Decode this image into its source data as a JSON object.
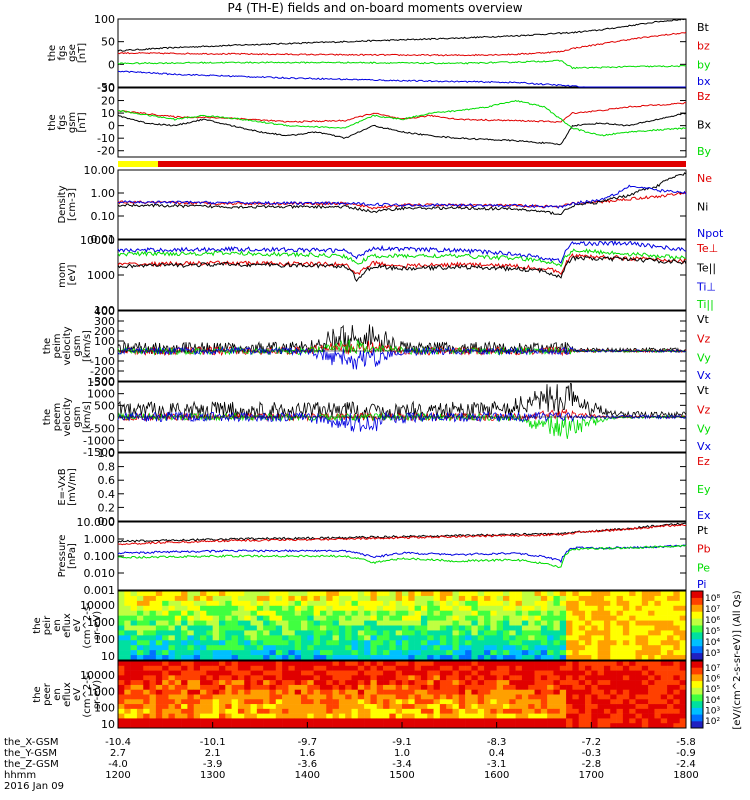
{
  "title": "P4 (TH-E) fields and on-board moments overview",
  "colors": {
    "black": "#000000",
    "red": "#e00000",
    "green": "#00dd00",
    "blue": "#0000e0",
    "yellow": "#ffff00"
  },
  "chart_data": [
    {
      "type": "line",
      "ylabel": [
        "the",
        "fgs",
        "gse",
        "[nT]"
      ],
      "ylim": [
        -50,
        100
      ],
      "yticks": [
        100,
        50,
        0,
        -50
      ],
      "legend": [
        {
          "name": "Bt",
          "color": "black"
        },
        {
          "name": "bz",
          "color": "red"
        },
        {
          "name": "by",
          "color": "green"
        },
        {
          "name": "bx",
          "color": "blue"
        }
      ],
      "series": [
        {
          "name": "Bt",
          "color": "black",
          "x": [
            0,
            10,
            20,
            30,
            40,
            50,
            60,
            70,
            80,
            85,
            90,
            95,
            100
          ],
          "y": [
            30,
            37,
            42,
            46,
            50,
            54,
            58,
            63,
            70,
            76,
            85,
            94,
            100
          ]
        },
        {
          "name": "bz",
          "color": "red",
          "x": [
            0,
            20,
            40,
            60,
            70,
            78,
            80,
            85,
            90,
            95,
            100
          ],
          "y": [
            25,
            23,
            21,
            20,
            22,
            28,
            35,
            45,
            55,
            63,
            70
          ]
        },
        {
          "name": "by",
          "color": "green",
          "x": [
            0,
            20,
            40,
            60,
            70,
            78,
            80,
            85,
            90,
            100
          ],
          "y": [
            2,
            4,
            4,
            2,
            5,
            8,
            -8,
            -7,
            -5,
            -4
          ]
        },
        {
          "name": "bx",
          "color": "blue",
          "x": [
            0,
            10,
            20,
            30,
            40,
            50,
            60,
            70,
            80,
            90,
            100
          ],
          "y": [
            -15,
            -22,
            -26,
            -30,
            -33,
            -36,
            -38,
            -40,
            -48,
            -60,
            -75
          ]
        }
      ]
    },
    {
      "type": "line",
      "ylabel": [
        "the",
        "fgs",
        "gsm",
        "[nT]"
      ],
      "ylim": [
        -25,
        30
      ],
      "yticks": [
        30,
        20,
        10,
        0,
        -10,
        -20
      ],
      "legend": [
        {
          "name": "Bz",
          "color": "red"
        },
        {
          "name": "Bx",
          "color": "black"
        },
        {
          "name": "By",
          "color": "green"
        }
      ],
      "series": [
        {
          "name": "Bz",
          "color": "red",
          "x": [
            0,
            10,
            20,
            30,
            40,
            45,
            50,
            55,
            60,
            70,
            78,
            80,
            85,
            90,
            100
          ],
          "y": [
            12,
            7,
            6,
            3,
            4,
            10,
            5,
            8,
            5,
            4,
            3,
            10,
            12,
            15,
            18
          ]
        },
        {
          "name": "Bx",
          "color": "black",
          "x": [
            0,
            5,
            10,
            15,
            20,
            25,
            30,
            35,
            40,
            45,
            50,
            55,
            60,
            70,
            78,
            80,
            85,
            90,
            95,
            100
          ],
          "y": [
            8,
            2,
            0,
            5,
            0,
            -5,
            -8,
            -5,
            -10,
            0,
            -5,
            -8,
            -10,
            -12,
            -15,
            0,
            2,
            0,
            5,
            10
          ]
        },
        {
          "name": "By",
          "color": "green",
          "x": [
            0,
            10,
            15,
            20,
            30,
            40,
            45,
            50,
            55,
            60,
            65,
            70,
            75,
            78,
            80,
            85,
            90,
            100
          ],
          "y": [
            12,
            5,
            8,
            6,
            0,
            -2,
            8,
            5,
            10,
            12,
            15,
            20,
            15,
            5,
            -2,
            -8,
            -5,
            -2
          ]
        }
      ]
    },
    {
      "type": "log-line",
      "ylabel": [
        "Density",
        "[cm-3]"
      ],
      "ylim": [
        0.01,
        10
      ],
      "yticks": [
        "10.00",
        "1.00",
        "0.10",
        "0.01"
      ],
      "ytickvals": [
        10,
        1,
        0.1,
        0.01
      ],
      "legend": [
        {
          "name": "Ne",
          "color": "red"
        },
        {
          "name": "Ni",
          "color": "black"
        },
        {
          "name": "Npot",
          "color": "blue"
        }
      ],
      "series": [
        {
          "name": "Ne",
          "color": "red",
          "x": [
            0,
            20,
            40,
            45,
            50,
            60,
            70,
            78,
            80,
            85,
            90,
            95,
            100
          ],
          "y": [
            0.4,
            0.35,
            0.35,
            0.22,
            0.3,
            0.3,
            0.28,
            0.25,
            0.35,
            0.4,
            0.55,
            0.7,
            1.0
          ]
        },
        {
          "name": "Ni",
          "color": "black",
          "x": [
            0,
            20,
            40,
            45,
            50,
            60,
            70,
            78,
            80,
            85,
            90,
            95,
            100
          ],
          "y": [
            0.3,
            0.25,
            0.25,
            0.15,
            0.22,
            0.22,
            0.2,
            0.12,
            0.28,
            0.4,
            0.8,
            2.0,
            7.0
          ]
        },
        {
          "name": "Npot",
          "color": "blue",
          "x": [
            0,
            20,
            40,
            50,
            60,
            70,
            78,
            80,
            85,
            88,
            90,
            95,
            100
          ],
          "y": [
            0.4,
            0.38,
            0.35,
            0.3,
            0.3,
            0.28,
            0.25,
            0.35,
            0.5,
            1.0,
            2.0,
            1.3,
            1.0
          ]
        }
      ]
    },
    {
      "type": "log-line",
      "ylabel": [
        "mom",
        "[eV]"
      ],
      "ylim": [
        100,
        10000
      ],
      "yticks": [
        "10000",
        "1000",
        "100"
      ],
      "ytickvals": [
        10000,
        1000,
        100
      ],
      "legend": [
        {
          "name": "Te⊥",
          "color": "red"
        },
        {
          "name": "Te||",
          "color": "black"
        },
        {
          "name": "Ti⊥",
          "color": "blue"
        },
        {
          "name": "Ti||",
          "color": "green"
        }
      ],
      "series": [
        {
          "name": "Ti⊥",
          "color": "blue",
          "x": [
            0,
            20,
            40,
            42,
            45,
            50,
            60,
            70,
            75,
            78,
            80,
            90,
            100
          ],
          "y": [
            5000,
            5500,
            5000,
            3000,
            6000,
            5500,
            5000,
            4000,
            3000,
            2500,
            8000,
            8000,
            5000
          ]
        },
        {
          "name": "Ti||",
          "color": "green",
          "x": [
            0,
            20,
            40,
            42,
            45,
            50,
            60,
            70,
            75,
            78,
            80,
            90,
            100
          ],
          "y": [
            4000,
            4200,
            3500,
            2000,
            3500,
            3500,
            3500,
            3000,
            2500,
            2000,
            5000,
            4000,
            3000
          ]
        },
        {
          "name": "Te⊥",
          "color": "red",
          "x": [
            0,
            20,
            40,
            42,
            45,
            50,
            60,
            70,
            75,
            78,
            80,
            90,
            100
          ],
          "y": [
            2000,
            2200,
            2000,
            1000,
            2200,
            1800,
            2000,
            1800,
            1500,
            1200,
            3500,
            3000,
            2500
          ]
        },
        {
          "name": "Te||",
          "color": "black",
          "x": [
            0,
            20,
            40,
            42,
            45,
            50,
            60,
            70,
            75,
            78,
            80,
            90,
            100
          ],
          "y": [
            1800,
            2000,
            1800,
            700,
            1800,
            1500,
            1700,
            1500,
            1300,
            900,
            3000,
            2800,
            2300
          ]
        }
      ]
    },
    {
      "type": "noise",
      "ylabel": [
        "the",
        "peim",
        "velocity",
        "gsm",
        "[km/s]"
      ],
      "ylim": [
        -300,
        400
      ],
      "yticks": [
        400,
        300,
        200,
        100,
        0,
        -100,
        -200,
        -300
      ],
      "legend": [
        {
          "name": "Vt",
          "color": "black"
        },
        {
          "name": "Vz",
          "color": "red"
        },
        {
          "name": "Vy",
          "color": "green"
        },
        {
          "name": "Vx",
          "color": "blue"
        }
      ],
      "series": [
        {
          "name": "Vt",
          "color": "black",
          "base": 30,
          "amp": 60,
          "peak_at": 42,
          "peak_amp": 250
        },
        {
          "name": "Vz",
          "color": "red",
          "base": 0,
          "amp": 40,
          "peak_at": 42,
          "peak_amp": 80
        },
        {
          "name": "Vy",
          "color": "green",
          "base": 0,
          "amp": 35,
          "peak_at": 42,
          "peak_amp": 90
        },
        {
          "name": "Vx",
          "color": "blue",
          "base": 0,
          "amp": 35,
          "peak_at": 42,
          "peak_amp": -200
        }
      ]
    },
    {
      "type": "noise",
      "ylabel": [
        "the",
        "peem",
        "velocity",
        "gsm",
        "[km/s]"
      ],
      "ylim": [
        -1500,
        1500
      ],
      "yticks": [
        1500,
        1000,
        500,
        0,
        -500,
        -1000,
        -1500
      ],
      "legend": [
        {
          "name": "Vt",
          "color": "black"
        },
        {
          "name": "Vz",
          "color": "red"
        },
        {
          "name": "Vy",
          "color": "green"
        },
        {
          "name": "Vx",
          "color": "blue"
        }
      ],
      "series": [
        {
          "name": "Vt",
          "color": "black",
          "base": 300,
          "amp": 350,
          "peak_at": 78,
          "peak_amp": 1200
        },
        {
          "name": "Vz",
          "color": "red",
          "base": 0,
          "amp": 150,
          "peak_at": 78,
          "peak_amp": 200
        },
        {
          "name": "Vy",
          "color": "green",
          "base": 0,
          "amp": 150,
          "peak_at": 78,
          "peak_amp": -900
        },
        {
          "name": "Vx",
          "color": "blue",
          "base": 0,
          "amp": 200,
          "peak_at": 42,
          "peak_amp": -600
        }
      ]
    },
    {
      "type": "empty",
      "ylabel": [
        "E=-VxB",
        "[mV/m]"
      ],
      "ylim": [
        0,
        1
      ],
      "yticks": [
        "1.0",
        "0.8",
        "0.6",
        "0.4",
        "0.2",
        "0.0"
      ],
      "ytickvals": [
        1,
        0.8,
        0.6,
        0.4,
        0.2,
        0
      ],
      "legend": [
        {
          "name": "Ez",
          "color": "red"
        },
        {
          "name": "Ey",
          "color": "green"
        },
        {
          "name": "Ex",
          "color": "blue"
        }
      ]
    },
    {
      "type": "log-line",
      "ylabel": [
        "Pressure",
        "[nPa]"
      ],
      "ylim": [
        0.001,
        10
      ],
      "yticks": [
        "10.000",
        "1.000",
        "0.100",
        "0.010",
        "0.001"
      ],
      "ytickvals": [
        10,
        1,
        0.1,
        0.01,
        0.001
      ],
      "legend": [
        {
          "name": "Pt",
          "color": "black"
        },
        {
          "name": "Pb",
          "color": "red"
        },
        {
          "name": "Pe",
          "color": "green"
        },
        {
          "name": "Pi",
          "color": "blue"
        }
      ],
      "series": [
        {
          "name": "Pt",
          "color": "black",
          "x": [
            0,
            20,
            40,
            60,
            78,
            80,
            90,
            100
          ],
          "y": [
            0.7,
            1.0,
            1.2,
            1.6,
            2.0,
            2.4,
            4.0,
            8.0
          ]
        },
        {
          "name": "Pb",
          "color": "red",
          "x": [
            0,
            20,
            40,
            60,
            78,
            80,
            90,
            100
          ],
          "y": [
            0.5,
            0.8,
            1.0,
            1.4,
            1.8,
            2.2,
            3.8,
            7.0
          ]
        },
        {
          "name": "Pi",
          "color": "blue",
          "x": [
            0,
            20,
            40,
            45,
            50,
            60,
            70,
            78,
            80,
            90,
            100
          ],
          "y": [
            0.15,
            0.2,
            0.2,
            0.08,
            0.15,
            0.12,
            0.15,
            0.05,
            0.3,
            0.3,
            0.4
          ]
        },
        {
          "name": "Pe",
          "color": "green",
          "x": [
            0,
            20,
            40,
            45,
            50,
            60,
            70,
            78,
            80,
            90,
            100
          ],
          "y": [
            0.08,
            0.1,
            0.1,
            0.04,
            0.07,
            0.05,
            0.06,
            0.02,
            0.25,
            0.3,
            0.4
          ]
        }
      ]
    },
    {
      "type": "heatmap",
      "ylabel": [
        "the",
        "peir",
        "en",
        "eflux",
        "eV",
        "(cm^2-s-",
        "sr-eV)"
      ],
      "yticks": [
        "10000",
        "1000",
        "100",
        "10"
      ],
      "colorbar_ticks": [
        "10⁸",
        "10⁷",
        "10⁶",
        "10⁵",
        "10⁴",
        "10³"
      ]
    },
    {
      "type": "heatmap",
      "ylabel": [
        "the",
        "peer",
        "en",
        "eflux",
        "eV",
        "(cm^2-s-",
        "sr-eV)"
      ],
      "yticks": [
        "10000",
        "1000",
        "100",
        "10"
      ],
      "colorbar_ticks": [
        "10⁷",
        "10⁶",
        "10⁵",
        "10⁴",
        "10³",
        "10²"
      ]
    }
  ],
  "colorbar_title": "[eV/(cm^2-s-sr-eV)] (All Qs)",
  "x_axis": {
    "rows": [
      {
        "label": "the_X-GSM",
        "values": [
          "-10.4",
          "-10.1",
          "-9.7",
          "-9.1",
          "-8.3",
          "-7.2",
          "-5.8"
        ]
      },
      {
        "label": "the_Y-GSM",
        "values": [
          "2.7",
          "2.1",
          "1.6",
          "1.0",
          "0.4",
          "-0.3",
          "-0.9"
        ]
      },
      {
        "label": "the_Z-GSM",
        "values": [
          "-4.0",
          "-3.9",
          "-3.6",
          "-3.4",
          "-3.1",
          "-2.8",
          "-2.4"
        ]
      },
      {
        "label": "hhmm",
        "values": [
          "1200",
          "1300",
          "1400",
          "1500",
          "1600",
          "1700",
          "1800"
        ]
      }
    ],
    "date": "2016 Jan 09"
  }
}
